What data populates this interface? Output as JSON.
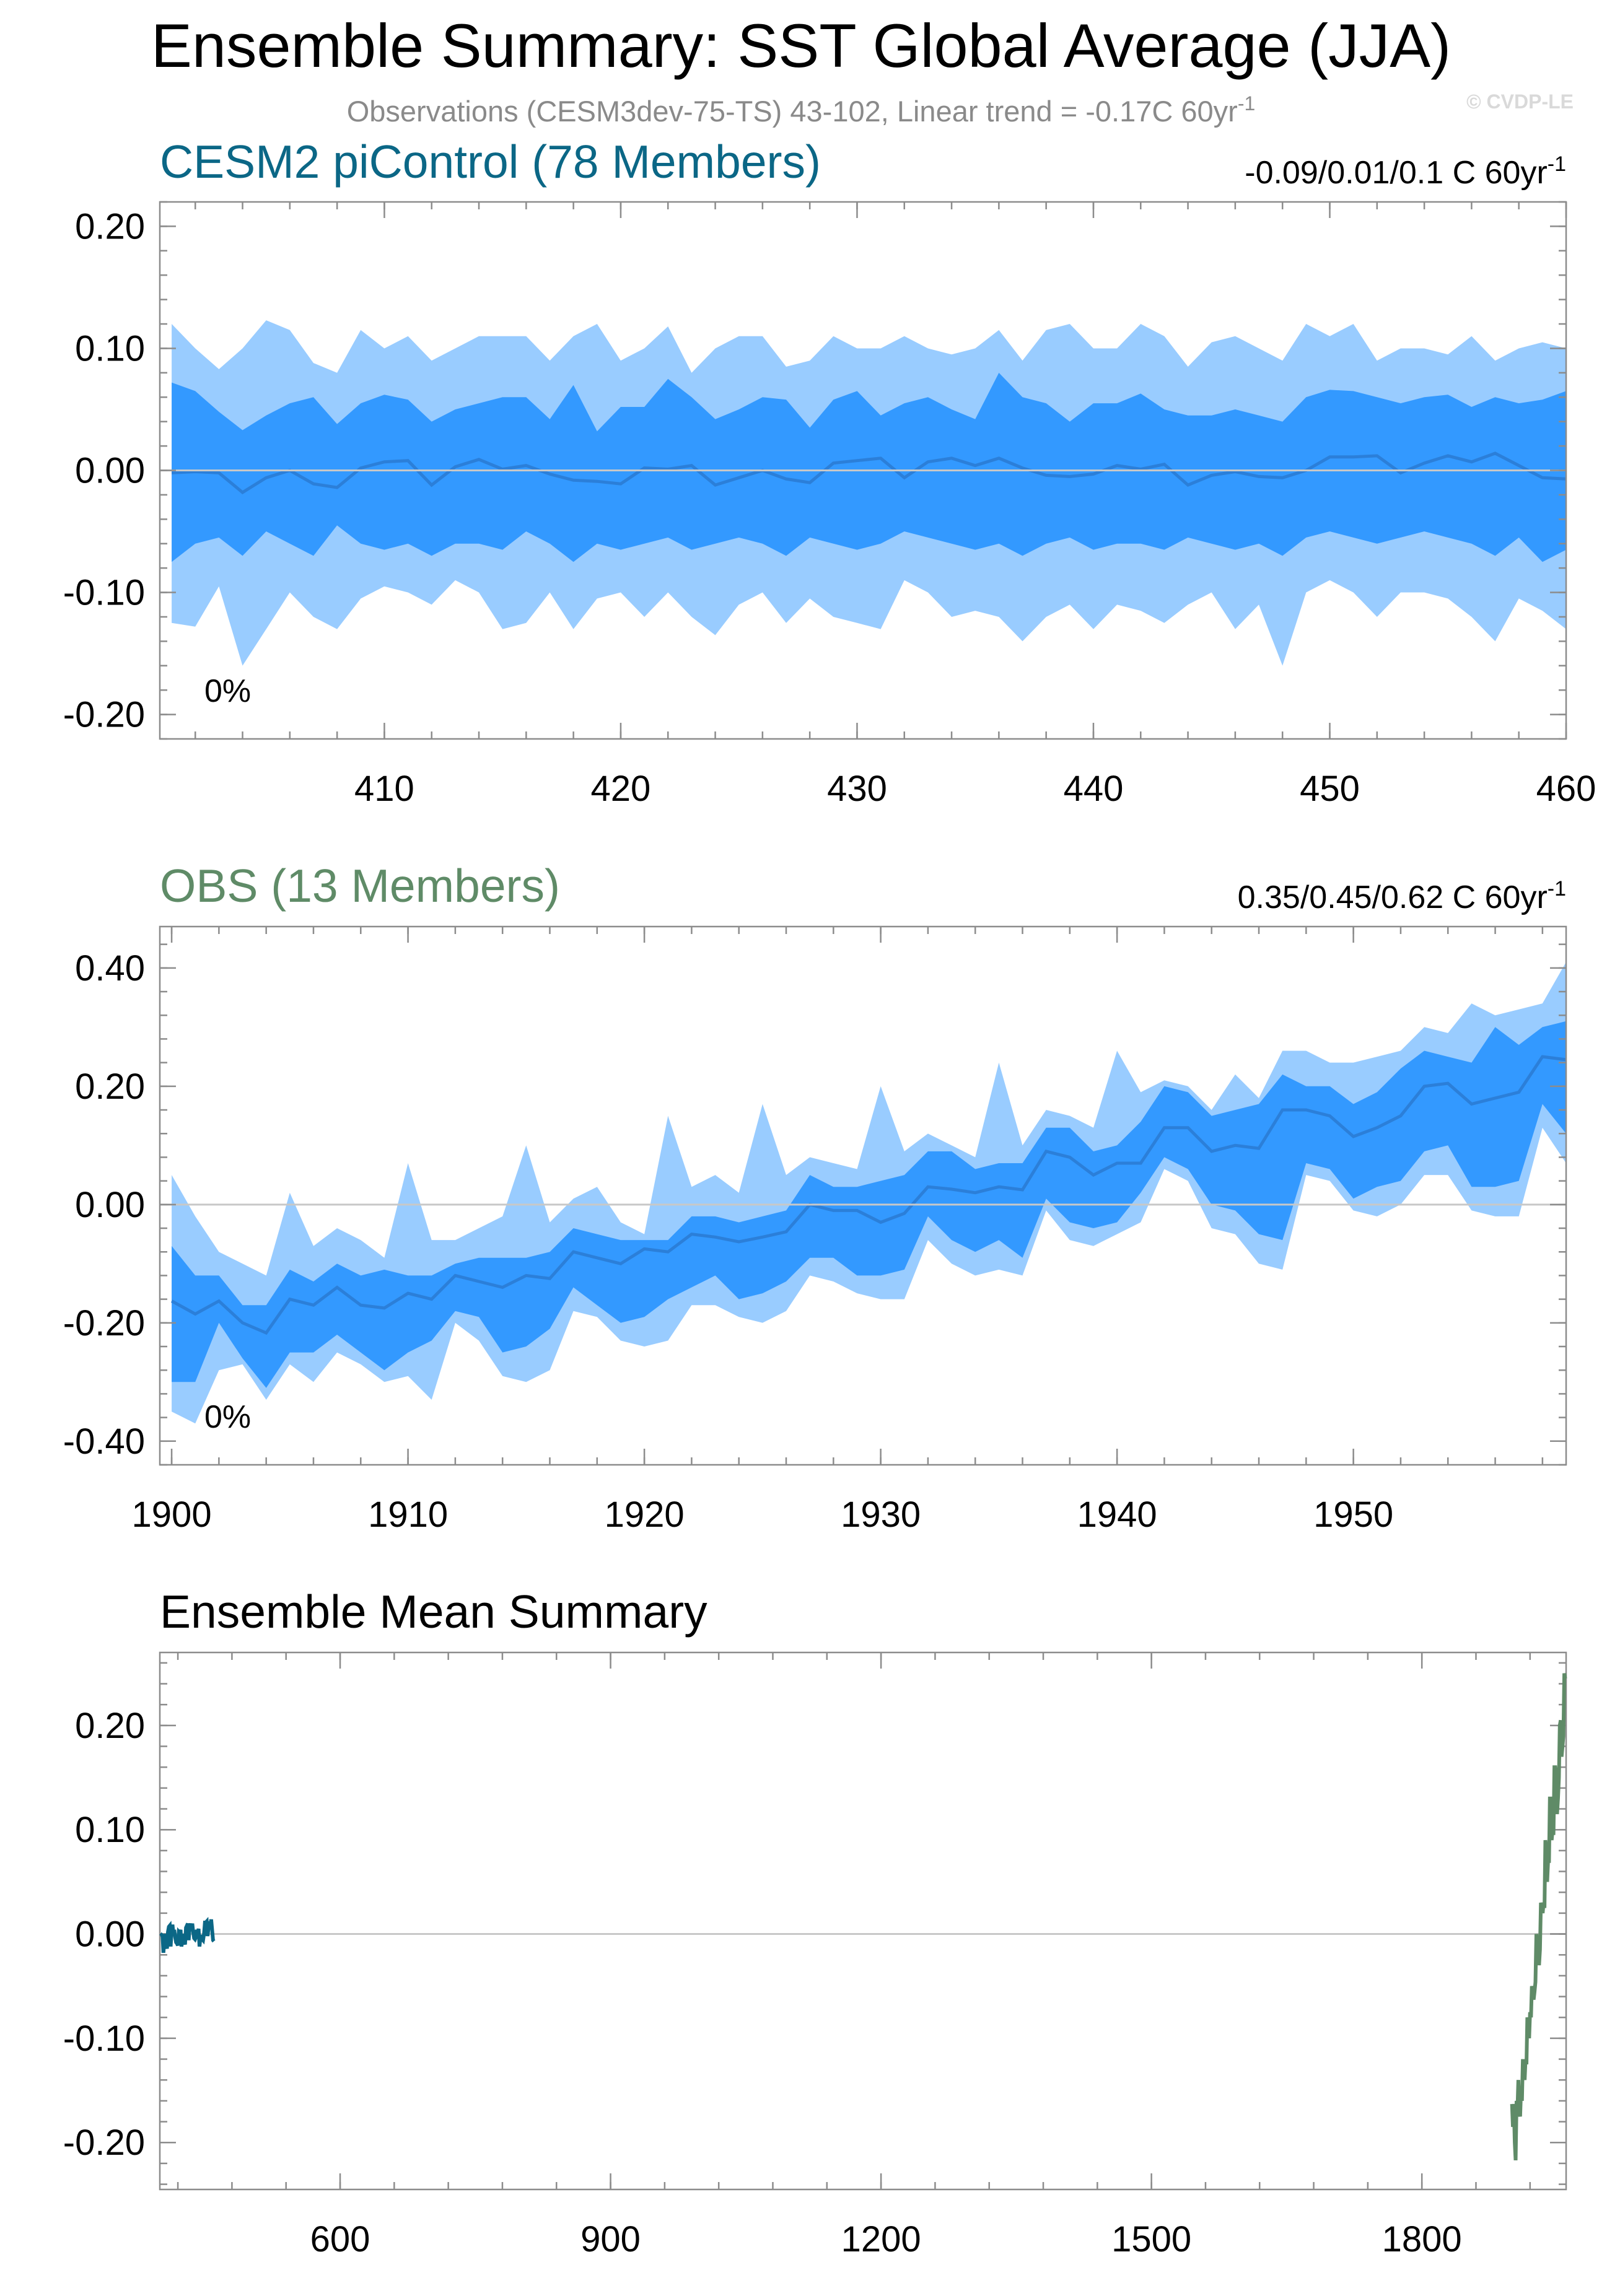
{
  "title": "Ensemble Summary: SST Global Average (JJA)",
  "subtitle": "Observations (CESM3dev-75-TS) 43-102, Linear trend = -0.17C 60yr",
  "subtitle_sup": "-1",
  "copyright": "© CVDP-LE",
  "colors": {
    "outer_band": "#99ccff",
    "inner_band": "#3399ff",
    "mean_line": "#2b7fd9",
    "picontrol_title": "#0b6786",
    "obs_title": "#5f8b67"
  },
  "chart_data": [
    {
      "type": "area",
      "title": "CESM2 piControl (78 Members)",
      "stat_text": "-0.09/0.01/0.1 C 60yr",
      "stat_sup": "-1",
      "percent_label": "0%",
      "xlim": [
        400.5,
        460
      ],
      "ylim": [
        -0.22,
        0.22
      ],
      "xticks": [
        410,
        420,
        430,
        440,
        450,
        460
      ],
      "xtick_labels": [
        "410",
        "420",
        "430",
        "440",
        "450",
        "460"
      ],
      "yticks": [
        0.2,
        0.1,
        0.0,
        -0.1,
        -0.2
      ],
      "ytick_labels": [
        "0.20",
        "0.10",
        "0.00",
        "-0.10",
        "-0.20"
      ],
      "x": [
        401,
        402,
        403,
        404,
        405,
        406,
        407,
        408,
        409,
        410,
        411,
        412,
        413,
        414,
        415,
        416,
        417,
        418,
        419,
        420,
        421,
        422,
        423,
        424,
        425,
        426,
        427,
        428,
        429,
        430,
        431,
        432,
        433,
        434,
        435,
        436,
        437,
        438,
        439,
        440,
        441,
        442,
        443,
        444,
        445,
        446,
        447,
        448,
        449,
        450,
        451,
        452,
        453,
        454,
        455,
        456,
        457,
        458,
        459,
        460
      ],
      "series": [
        {
          "name": "min",
          "values": [
            -0.125,
            -0.128,
            -0.095,
            -0.16,
            -0.13,
            -0.1,
            -0.12,
            -0.13,
            -0.105,
            -0.095,
            -0.1,
            -0.11,
            -0.09,
            -0.1,
            -0.13,
            -0.125,
            -0.1,
            -0.13,
            -0.105,
            -0.1,
            -0.12,
            -0.1,
            -0.12,
            -0.135,
            -0.11,
            -0.1,
            -0.125,
            -0.105,
            -0.12,
            -0.125,
            -0.13,
            -0.09,
            -0.1,
            -0.12,
            -0.115,
            -0.12,
            -0.14,
            -0.12,
            -0.11,
            -0.13,
            -0.11,
            -0.115,
            -0.125,
            -0.11,
            -0.1,
            -0.13,
            -0.11,
            -0.16,
            -0.1,
            -0.09,
            -0.1,
            -0.12,
            -0.1,
            -0.1,
            -0.105,
            -0.12,
            -0.14,
            -0.105,
            -0.115,
            -0.13
          ]
        },
        {
          "name": "p10",
          "values": [
            -0.075,
            -0.06,
            -0.055,
            -0.07,
            -0.05,
            -0.06,
            -0.07,
            -0.045,
            -0.06,
            -0.065,
            -0.06,
            -0.07,
            -0.06,
            -0.06,
            -0.065,
            -0.05,
            -0.06,
            -0.075,
            -0.06,
            -0.065,
            -0.06,
            -0.055,
            -0.065,
            -0.06,
            -0.055,
            -0.06,
            -0.07,
            -0.055,
            -0.06,
            -0.065,
            -0.06,
            -0.05,
            -0.055,
            -0.06,
            -0.065,
            -0.06,
            -0.07,
            -0.06,
            -0.055,
            -0.065,
            -0.06,
            -0.06,
            -0.065,
            -0.055,
            -0.06,
            -0.065,
            -0.06,
            -0.07,
            -0.055,
            -0.05,
            -0.055,
            -0.06,
            -0.055,
            -0.05,
            -0.055,
            -0.06,
            -0.07,
            -0.055,
            -0.075,
            -0.065
          ]
        },
        {
          "name": "mean",
          "values": [
            -0.002,
            -0.001,
            -0.002,
            -0.018,
            -0.006,
            0.0,
            -0.011,
            -0.014,
            0.002,
            0.007,
            0.008,
            -0.012,
            0.003,
            0.009,
            0.001,
            0.004,
            -0.003,
            -0.008,
            -0.009,
            -0.011,
            0.002,
            0.001,
            0.004,
            -0.012,
            -0.006,
            0.0,
            -0.007,
            -0.01,
            0.006,
            0.008,
            0.01,
            -0.006,
            0.007,
            0.01,
            0.004,
            0.01,
            0.002,
            -0.004,
            -0.005,
            -0.003,
            0.004,
            0.001,
            0.005,
            -0.012,
            -0.004,
            -0.001,
            -0.005,
            -0.006,
            0.0,
            0.011,
            0.011,
            0.012,
            -0.002,
            0.006,
            0.012,
            0.007,
            0.014,
            0.004,
            -0.006,
            -0.007
          ]
        },
        {
          "name": "p90",
          "values": [
            0.072,
            0.065,
            0.048,
            0.033,
            0.045,
            0.055,
            0.06,
            0.038,
            0.055,
            0.062,
            0.058,
            0.04,
            0.05,
            0.055,
            0.06,
            0.06,
            0.042,
            0.07,
            0.032,
            0.052,
            0.052,
            0.075,
            0.06,
            0.042,
            0.05,
            0.06,
            0.058,
            0.035,
            0.058,
            0.065,
            0.045,
            0.055,
            0.06,
            0.05,
            0.042,
            0.08,
            0.06,
            0.055,
            0.04,
            0.055,
            0.055,
            0.063,
            0.05,
            0.045,
            0.045,
            0.05,
            0.045,
            0.04,
            0.06,
            0.066,
            0.065,
            0.06,
            0.055,
            0.06,
            0.062,
            0.052,
            0.06,
            0.055,
            0.058,
            0.065
          ]
        },
        {
          "name": "max",
          "values": [
            0.12,
            0.1,
            0.083,
            0.1,
            0.123,
            0.115,
            0.088,
            0.08,
            0.115,
            0.1,
            0.11,
            0.09,
            0.1,
            0.11,
            0.11,
            0.11,
            0.09,
            0.11,
            0.12,
            0.09,
            0.1,
            0.118,
            0.08,
            0.1,
            0.11,
            0.11,
            0.085,
            0.09,
            0.11,
            0.1,
            0.1,
            0.11,
            0.1,
            0.095,
            0.1,
            0.115,
            0.09,
            0.115,
            0.12,
            0.1,
            0.1,
            0.12,
            0.11,
            0.085,
            0.105,
            0.11,
            0.1,
            0.09,
            0.12,
            0.11,
            0.12,
            0.09,
            0.1,
            0.1,
            0.095,
            0.11,
            0.09,
            0.1,
            0.105,
            0.1
          ]
        }
      ]
    },
    {
      "type": "area",
      "title": "OBS (13 Members)",
      "stat_text": "0.35/0.45/0.62 C 60yr",
      "stat_sup": "-1",
      "percent_label": "0%",
      "xlim": [
        1899.5,
        1959
      ],
      "ylim": [
        -0.44,
        0.47
      ],
      "xticks": [
        1900,
        1910,
        1920,
        1930,
        1940,
        1950
      ],
      "xtick_labels": [
        "1900",
        "1910",
        "1920",
        "1930",
        "1940",
        "1950"
      ],
      "yticks": [
        0.4,
        0.2,
        0.0,
        -0.2,
        -0.4
      ],
      "ytick_labels": [
        "0.40",
        "0.20",
        "0.00",
        "-0.20",
        "-0.40"
      ],
      "x": [
        1900,
        1901,
        1902,
        1903,
        1904,
        1905,
        1906,
        1907,
        1908,
        1909,
        1910,
        1911,
        1912,
        1913,
        1914,
        1915,
        1916,
        1917,
        1918,
        1919,
        1920,
        1921,
        1922,
        1923,
        1924,
        1925,
        1926,
        1927,
        1928,
        1929,
        1930,
        1931,
        1932,
        1933,
        1934,
        1935,
        1936,
        1937,
        1938,
        1939,
        1940,
        1941,
        1942,
        1943,
        1944,
        1945,
        1946,
        1947,
        1948,
        1949,
        1950,
        1951,
        1952,
        1953,
        1954,
        1955,
        1956,
        1957,
        1958,
        1959
      ],
      "series": [
        {
          "name": "min",
          "values": [
            -0.35,
            -0.37,
            -0.28,
            -0.27,
            -0.33,
            -0.27,
            -0.3,
            -0.25,
            -0.27,
            -0.3,
            -0.29,
            -0.33,
            -0.2,
            -0.23,
            -0.29,
            -0.3,
            -0.28,
            -0.18,
            -0.19,
            -0.23,
            -0.24,
            -0.23,
            -0.17,
            -0.17,
            -0.19,
            -0.2,
            -0.18,
            -0.12,
            -0.13,
            -0.15,
            -0.16,
            -0.16,
            -0.06,
            -0.1,
            -0.12,
            -0.11,
            -0.12,
            -0.01,
            -0.06,
            -0.07,
            -0.05,
            -0.03,
            0.06,
            0.04,
            -0.04,
            -0.05,
            -0.1,
            -0.11,
            0.05,
            0.04,
            -0.01,
            -0.02,
            0.0,
            0.05,
            0.05,
            -0.01,
            -0.02,
            -0.02,
            0.13,
            0.07
          ]
        },
        {
          "name": "p10",
          "values": [
            -0.3,
            -0.3,
            -0.2,
            -0.26,
            -0.31,
            -0.25,
            -0.25,
            -0.22,
            -0.25,
            -0.28,
            -0.25,
            -0.23,
            -0.18,
            -0.19,
            -0.25,
            -0.24,
            -0.21,
            -0.14,
            -0.17,
            -0.2,
            -0.19,
            -0.16,
            -0.14,
            -0.12,
            -0.16,
            -0.15,
            -0.13,
            -0.09,
            -0.09,
            -0.12,
            -0.12,
            -0.11,
            -0.02,
            -0.06,
            -0.08,
            -0.06,
            -0.09,
            0.01,
            -0.03,
            -0.04,
            -0.03,
            0.02,
            0.08,
            0.06,
            0.0,
            -0.01,
            -0.05,
            -0.06,
            0.07,
            0.06,
            0.01,
            0.03,
            0.04,
            0.09,
            0.1,
            0.03,
            0.03,
            0.04,
            0.17,
            0.12
          ]
        },
        {
          "name": "mean",
          "values": [
            -0.163,
            -0.185,
            -0.163,
            -0.2,
            -0.217,
            -0.16,
            -0.17,
            -0.14,
            -0.17,
            -0.175,
            -0.15,
            -0.16,
            -0.12,
            -0.13,
            -0.14,
            -0.12,
            -0.125,
            -0.08,
            -0.09,
            -0.1,
            -0.075,
            -0.08,
            -0.05,
            -0.055,
            -0.063,
            -0.055,
            -0.046,
            0.0,
            -0.01,
            -0.01,
            -0.03,
            -0.015,
            0.03,
            0.026,
            0.02,
            0.03,
            0.025,
            0.09,
            0.08,
            0.05,
            0.07,
            0.07,
            0.13,
            0.13,
            0.09,
            0.1,
            0.095,
            0.16,
            0.16,
            0.15,
            0.115,
            0.13,
            0.15,
            0.2,
            0.205,
            0.17,
            0.18,
            0.19,
            0.25,
            0.245
          ]
        },
        {
          "name": "p90",
          "values": [
            -0.07,
            -0.12,
            -0.12,
            -0.17,
            -0.17,
            -0.11,
            -0.13,
            -0.1,
            -0.12,
            -0.11,
            -0.12,
            -0.12,
            -0.1,
            -0.09,
            -0.09,
            -0.09,
            -0.08,
            -0.04,
            -0.05,
            -0.06,
            -0.06,
            -0.06,
            -0.02,
            -0.02,
            -0.03,
            -0.02,
            -0.01,
            0.05,
            0.03,
            0.03,
            0.04,
            0.05,
            0.09,
            0.09,
            0.06,
            0.07,
            0.07,
            0.13,
            0.13,
            0.09,
            0.1,
            0.14,
            0.2,
            0.19,
            0.15,
            0.16,
            0.17,
            0.22,
            0.2,
            0.2,
            0.17,
            0.19,
            0.23,
            0.26,
            0.25,
            0.24,
            0.3,
            0.27,
            0.3,
            0.31
          ]
        },
        {
          "name": "max",
          "values": [
            0.05,
            -0.02,
            -0.08,
            -0.1,
            -0.12,
            0.02,
            -0.07,
            -0.04,
            -0.06,
            -0.09,
            0.07,
            -0.06,
            -0.06,
            -0.04,
            -0.02,
            0.1,
            -0.03,
            0.01,
            0.03,
            -0.03,
            -0.05,
            0.15,
            0.03,
            0.05,
            0.02,
            0.17,
            0.05,
            0.08,
            0.07,
            0.06,
            0.2,
            0.09,
            0.12,
            0.1,
            0.08,
            0.24,
            0.1,
            0.16,
            0.15,
            0.13,
            0.26,
            0.19,
            0.21,
            0.2,
            0.16,
            0.22,
            0.18,
            0.26,
            0.26,
            0.24,
            0.24,
            0.25,
            0.26,
            0.3,
            0.29,
            0.34,
            0.32,
            0.33,
            0.34,
            0.41
          ]
        }
      ]
    },
    {
      "type": "line",
      "title": "Ensemble Mean Summary",
      "xlim": [
        400,
        1960
      ],
      "ylim": [
        -0.245,
        0.27
      ],
      "xticks": [
        600,
        900,
        1200,
        1500,
        1800
      ],
      "xtick_labels": [
        "600",
        "900",
        "1200",
        "1500",
        "1800"
      ],
      "yticks": [
        0.2,
        0.1,
        0.0,
        -0.1,
        -0.2
      ],
      "ytick_labels": [
        "0.20",
        "0.10",
        "0.00",
        "-0.10",
        "-0.20"
      ],
      "series": [
        {
          "name": "CESM2 piControl",
          "source_panel": 0,
          "color": "#0b6786"
        },
        {
          "name": "OBS",
          "source_panel": 1,
          "color": "#5f8b67"
        }
      ]
    }
  ]
}
